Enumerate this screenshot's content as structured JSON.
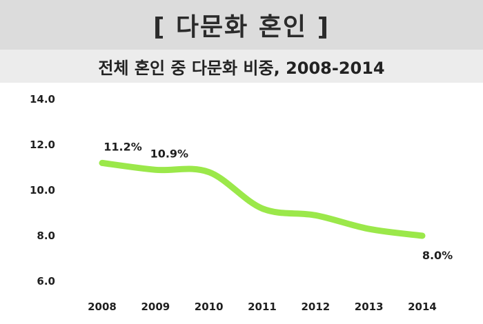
{
  "header": {
    "title": "[ 다문화 혼인 ]"
  },
  "chart_data": {
    "type": "line",
    "title": "전체 혼인 중 다문화 비중, 2008-2014",
    "categories": [
      "2008",
      "2009",
      "2010",
      "2011",
      "2012",
      "2013",
      "2014"
    ],
    "series": [
      {
        "values": [
          11.2,
          10.9,
          10.8,
          9.2,
          8.9,
          8.3,
          8.0
        ]
      }
    ],
    "data_labels": [
      {
        "index": 0,
        "text": "11.2%"
      },
      {
        "index": 1,
        "text": "10.9%"
      },
      {
        "index": 6,
        "text": "8.0%"
      }
    ],
    "y_ticks": [
      "14.0",
      "12.0",
      "10.0",
      "8.0",
      "6.0"
    ],
    "ylim": [
      6,
      14
    ],
    "xlabel": "",
    "ylabel": "",
    "grid": false,
    "line_color": "#9be84a"
  }
}
